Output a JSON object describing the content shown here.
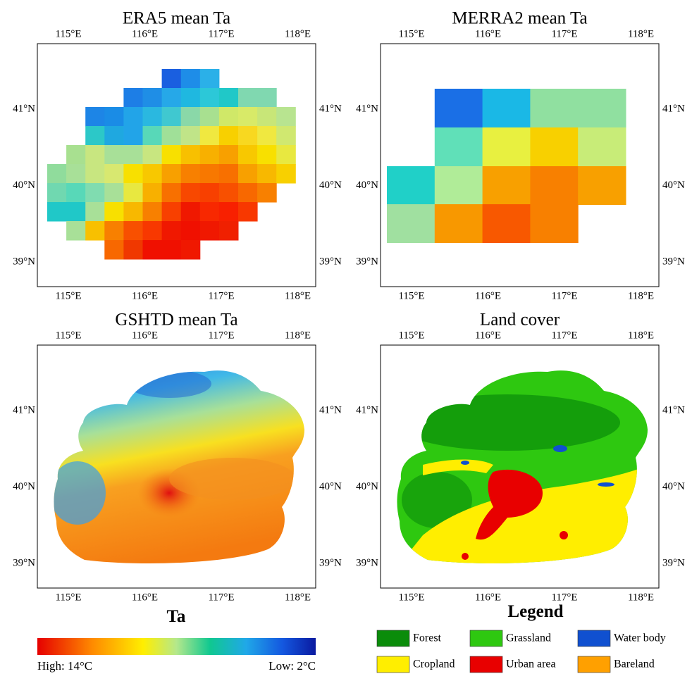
{
  "panels": [
    {
      "title": "ERA5 mean Ta",
      "xticks": [
        "115°E",
        "116°E",
        "117°E",
        "118°E"
      ],
      "yticks": [
        "41°N",
        "40°N",
        "39°N"
      ]
    },
    {
      "title": "MERRA2 mean Ta",
      "xticks": [
        "115°E",
        "116°E",
        "117°E",
        "118°E"
      ],
      "yticks": [
        "41°N",
        "40°N",
        "39°N"
      ]
    },
    {
      "title": "GSHTD mean Ta",
      "xticks": [
        "115°E",
        "116°E",
        "117°E",
        "118°E"
      ],
      "yticks": [
        "41°N",
        "40°N",
        "39°N"
      ]
    },
    {
      "title": "Land cover",
      "xticks": [
        "115°E",
        "116°E",
        "117°E",
        "118°E"
      ],
      "yticks": [
        "41°N",
        "40°N",
        "39°N"
      ]
    }
  ],
  "colorbar": {
    "title": "Ta",
    "high": "High: 14°C",
    "low": "Low: 2°C"
  },
  "legend": {
    "title": "Legend",
    "items": [
      {
        "label": "Forest",
        "color": "#0a8c0a"
      },
      {
        "label": "Grassland",
        "color": "#2ec810"
      },
      {
        "label": "Water body",
        "color": "#1050d0"
      },
      {
        "label": "Cropland",
        "color": "#ffee00"
      },
      {
        "label": "Urban area",
        "color": "#e80000"
      },
      {
        "label": "Bareland",
        "color": "#ffa000"
      }
    ]
  }
}
